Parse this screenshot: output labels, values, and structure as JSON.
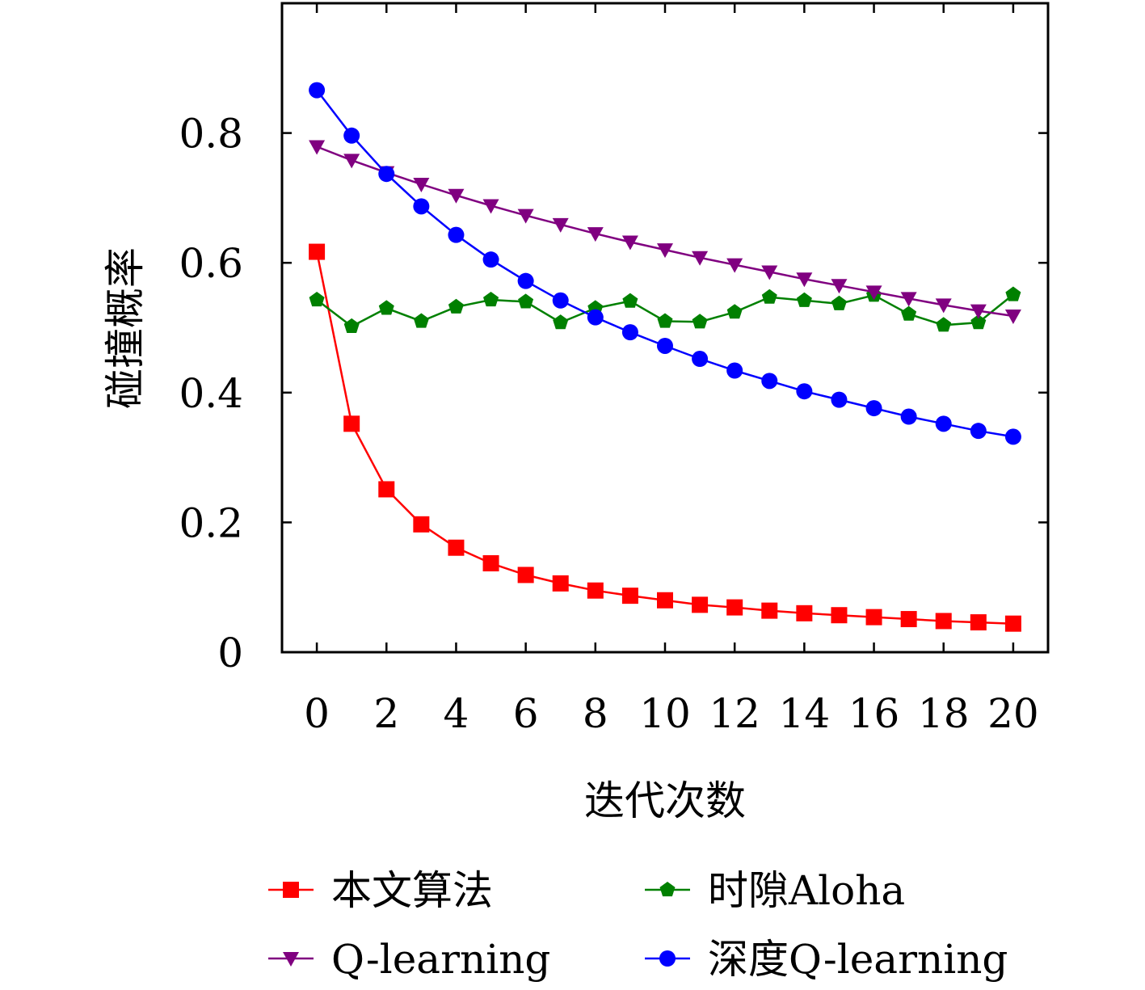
{
  "chart_data": {
    "type": "line",
    "xlabel": "迭代次数",
    "ylabel": "碰撞概率",
    "xlim": [
      -1,
      21
    ],
    "ylim": [
      0,
      1.0
    ],
    "xticks": [
      0,
      2,
      4,
      6,
      8,
      10,
      12,
      14,
      16,
      18,
      20
    ],
    "yticks": [
      0,
      0.2,
      0.4,
      0.6,
      0.8
    ],
    "ytick_labels": [
      "0",
      "0.2",
      "0.4",
      "0.6",
      "0.8"
    ],
    "grid": false,
    "legend_position": "bottom",
    "x": [
      0,
      1,
      2,
      3,
      4,
      5,
      6,
      7,
      8,
      9,
      10,
      11,
      12,
      13,
      14,
      15,
      16,
      17,
      18,
      19,
      20
    ],
    "series": [
      {
        "name": "本文算法",
        "color": "#ff0000",
        "marker": "square",
        "values": [
          0.617,
          0.352,
          0.251,
          0.197,
          0.161,
          0.137,
          0.119,
          0.106,
          0.095,
          0.087,
          0.08,
          0.073,
          0.069,
          0.064,
          0.06,
          0.057,
          0.054,
          0.051,
          0.048,
          0.046,
          0.044
        ]
      },
      {
        "name": "时隙Aloha",
        "color": "#008000",
        "marker": "pentagon",
        "values": [
          0.543,
          0.502,
          0.53,
          0.51,
          0.532,
          0.543,
          0.54,
          0.508,
          0.53,
          0.541,
          0.51,
          0.509,
          0.524,
          0.547,
          0.542,
          0.537,
          0.55,
          0.521,
          0.504,
          0.508,
          0.551
        ]
      },
      {
        "name": "Q-learning",
        "color": "#800080",
        "marker": "triangle-down",
        "values": [
          0.779,
          0.758,
          0.739,
          0.721,
          0.704,
          0.688,
          0.673,
          0.659,
          0.645,
          0.632,
          0.62,
          0.608,
          0.597,
          0.586,
          0.575,
          0.565,
          0.555,
          0.545,
          0.535,
          0.526,
          0.518
        ]
      },
      {
        "name": "深度Q-learning",
        "color": "#0000ff",
        "marker": "circle",
        "values": [
          0.866,
          0.796,
          0.737,
          0.687,
          0.643,
          0.605,
          0.572,
          0.542,
          0.516,
          0.493,
          0.472,
          0.452,
          0.434,
          0.418,
          0.402,
          0.389,
          0.376,
          0.363,
          0.352,
          0.341,
          0.332
        ]
      }
    ]
  }
}
